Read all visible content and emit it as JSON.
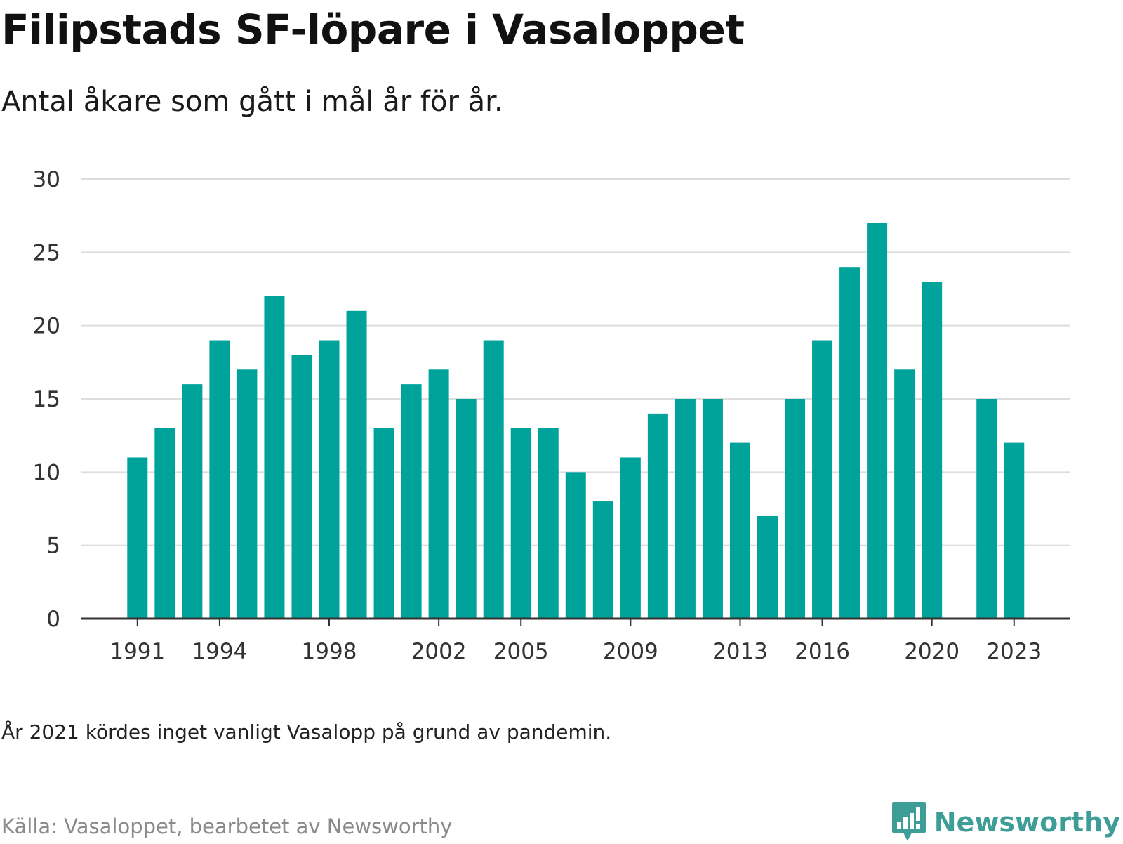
{
  "header": {
    "title": "Filipstads SF-löpare i Vasaloppet",
    "subtitle": "Antal åkare som gått i mål år för år."
  },
  "footer": {
    "note": "År 2021 kördes inget vanligt Vasalopp på grund av pandemin.",
    "source": "Källa: Vasaloppet, bearbetet av Newsworthy",
    "brand_name": "Newsworthy",
    "brand_icon": "newsworthy-logo-icon"
  },
  "colors": {
    "bar": "#00A39A",
    "brand": "#3E9E97",
    "grid": "#DDDDDD",
    "axis": "#333333",
    "tick_text": "#333333"
  },
  "chart_data": {
    "type": "bar",
    "title": "",
    "xlabel": "",
    "ylabel": "",
    "ylim": [
      0,
      30
    ],
    "y_ticks": [
      0,
      5,
      10,
      15,
      20,
      25,
      30
    ],
    "x_tick_labels": [
      "1991",
      "1994",
      "1998",
      "2002",
      "2005",
      "2009",
      "2013",
      "2016",
      "2020",
      "2023"
    ],
    "grid": true,
    "categories": [
      "1991",
      "1992",
      "1993",
      "1994",
      "1995",
      "1996",
      "1997",
      "1998",
      "1999",
      "2000",
      "2001",
      "2002",
      "2003",
      "2004",
      "2005",
      "2006",
      "2007",
      "2008",
      "2009",
      "2010",
      "2011",
      "2012",
      "2013",
      "2014",
      "2015",
      "2016",
      "2017",
      "2018",
      "2019",
      "2020",
      "2021",
      "2022",
      "2023"
    ],
    "values": [
      11,
      13,
      16,
      19,
      17,
      22,
      18,
      19,
      21,
      13,
      16,
      17,
      15,
      19,
      13,
      13,
      10,
      8,
      11,
      14,
      15,
      15,
      12,
      7,
      15,
      19,
      24,
      27,
      17,
      23,
      null,
      15,
      12
    ]
  }
}
